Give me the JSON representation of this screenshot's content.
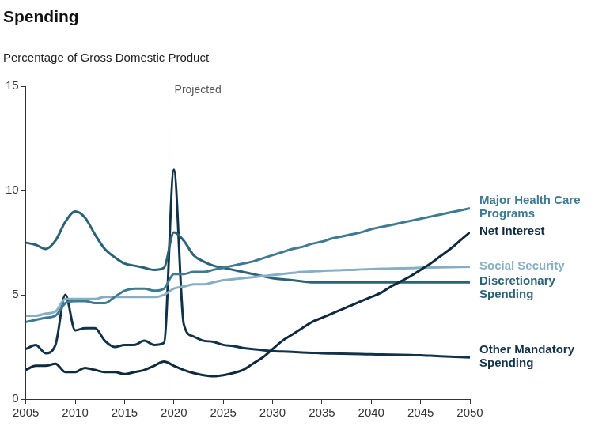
{
  "chart_data": {
    "type": "line",
    "title": "Spending",
    "subtitle": "Percentage of Gross Domestic Product",
    "annotations": [
      {
        "text": "Projected",
        "x": 2019.5
      }
    ],
    "x": [
      2005,
      2006,
      2007,
      2008,
      2009,
      2010,
      2011,
      2012,
      2013,
      2014,
      2015,
      2016,
      2017,
      2018,
      2019,
      2020,
      2021,
      2022,
      2023,
      2024,
      2025,
      2026,
      2027,
      2028,
      2029,
      2030,
      2031,
      2032,
      2033,
      2034,
      2035,
      2036,
      2037,
      2038,
      2039,
      2040,
      2041,
      2042,
      2043,
      2044,
      2045,
      2046,
      2047,
      2048,
      2049,
      2050
    ],
    "xlim": [
      2005,
      2050
    ],
    "xticks": [
      2005,
      2010,
      2015,
      2020,
      2025,
      2030,
      2035,
      2040,
      2045,
      2050
    ],
    "ylim": [
      0,
      15
    ],
    "yticks": [
      0,
      5,
      10,
      15
    ],
    "grid": false,
    "series": [
      {
        "name": "Major Health Care Programs",
        "color": "#3f7a93",
        "values": [
          3.7,
          3.8,
          3.9,
          4.0,
          4.6,
          4.7,
          4.7,
          4.6,
          4.6,
          4.9,
          5.2,
          5.3,
          5.3,
          5.2,
          5.3,
          6.0,
          6.0,
          6.1,
          6.1,
          6.2,
          6.3,
          6.4,
          6.5,
          6.6,
          6.75,
          6.9,
          7.05,
          7.2,
          7.3,
          7.45,
          7.55,
          7.7,
          7.8,
          7.9,
          8.0,
          8.15,
          8.25,
          8.35,
          8.45,
          8.55,
          8.65,
          8.75,
          8.85,
          8.95,
          9.05,
          9.15
        ]
      },
      {
        "name": "Net Interest",
        "color": "#0e2a3c",
        "values": [
          1.4,
          1.6,
          1.6,
          1.7,
          1.3,
          1.3,
          1.5,
          1.4,
          1.3,
          1.3,
          1.2,
          1.3,
          1.4,
          1.6,
          1.8,
          1.6,
          1.4,
          1.25,
          1.15,
          1.1,
          1.15,
          1.25,
          1.4,
          1.7,
          2.0,
          2.4,
          2.8,
          3.1,
          3.4,
          3.7,
          3.9,
          4.1,
          4.3,
          4.5,
          4.7,
          4.9,
          5.1,
          5.4,
          5.65,
          5.9,
          6.2,
          6.5,
          6.85,
          7.2,
          7.6,
          8.0
        ]
      },
      {
        "name": "Social Security",
        "color": "#86afc5",
        "values": [
          4.0,
          4.0,
          4.1,
          4.2,
          4.8,
          4.8,
          4.8,
          4.8,
          4.9,
          4.9,
          4.9,
          4.9,
          4.9,
          4.9,
          5.0,
          5.3,
          5.4,
          5.5,
          5.5,
          5.6,
          5.7,
          5.75,
          5.8,
          5.85,
          5.9,
          5.95,
          6.0,
          6.05,
          6.1,
          6.12,
          6.15,
          6.17,
          6.19,
          6.2,
          6.22,
          6.23,
          6.25,
          6.26,
          6.27,
          6.28,
          6.3,
          6.31,
          6.32,
          6.33,
          6.34,
          6.35
        ]
      },
      {
        "name": "Discretionary Spending",
        "color": "#2a6277",
        "values": [
          7.5,
          7.4,
          7.2,
          7.6,
          8.5,
          9.0,
          8.7,
          7.9,
          7.2,
          6.8,
          6.5,
          6.4,
          6.3,
          6.2,
          6.3,
          8.0,
          7.6,
          6.9,
          6.6,
          6.4,
          6.3,
          6.2,
          6.1,
          6.0,
          5.9,
          5.8,
          5.75,
          5.7,
          5.65,
          5.6,
          5.6,
          5.6,
          5.6,
          5.6,
          5.6,
          5.6,
          5.6,
          5.6,
          5.6,
          5.6,
          5.6,
          5.6,
          5.6,
          5.6,
          5.6,
          5.6
        ]
      },
      {
        "name": "Other Mandatory Spending",
        "color": "#12324a",
        "values": [
          2.4,
          2.6,
          2.2,
          2.6,
          5.0,
          3.3,
          3.4,
          3.4,
          2.8,
          2.5,
          2.6,
          2.6,
          2.8,
          2.6,
          2.7,
          11.0,
          3.6,
          3.0,
          2.8,
          2.75,
          2.6,
          2.55,
          2.45,
          2.4,
          2.35,
          2.3,
          2.28,
          2.26,
          2.24,
          2.22,
          2.2,
          2.19,
          2.18,
          2.17,
          2.16,
          2.15,
          2.14,
          2.13,
          2.12,
          2.11,
          2.1,
          2.08,
          2.06,
          2.04,
          2.02,
          2.0
        ]
      }
    ]
  }
}
